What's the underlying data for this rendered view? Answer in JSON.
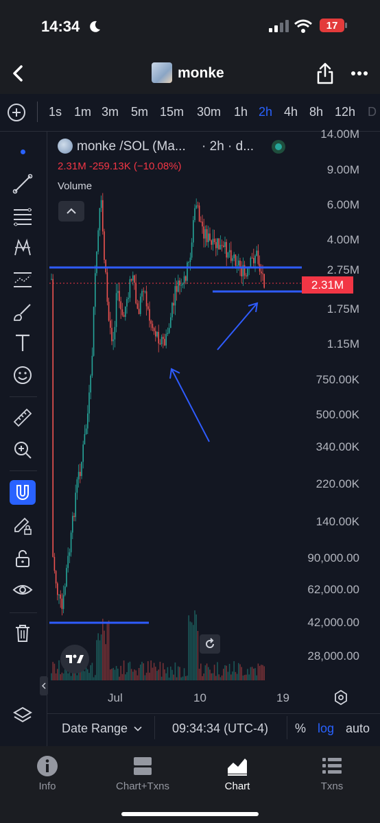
{
  "status_bar": {
    "time": "14:34",
    "battery": "17"
  },
  "nav": {
    "title": "monke"
  },
  "timeframes": [
    {
      "label": "1s"
    },
    {
      "label": "1m"
    },
    {
      "label": "3m"
    },
    {
      "label": "5m"
    },
    {
      "label": "15m"
    },
    {
      "label": "30m"
    },
    {
      "label": "1h"
    },
    {
      "label": "2h",
      "active": true
    },
    {
      "label": "4h"
    },
    {
      "label": "8h"
    },
    {
      "label": "12h"
    },
    {
      "label": "D"
    }
  ],
  "legend": {
    "title": "monke /SOL (Ma...",
    "interval": "· 2h · d...",
    "stats": "2.31M  -259.13K (−10.08%)",
    "volume": "Volume"
  },
  "price_axis": [
    "14.00M",
    "9.00M",
    "6.00M",
    "4.00M",
    "2.75M",
    "1.75M",
    "1.15M",
    "750.00K",
    "500.00K",
    "340.00K",
    "220.00K",
    "140.00K",
    "90,000.00",
    "62,000.00",
    "42,000.00",
    "28,000.00"
  ],
  "current_price": "2.31M",
  "time_axis": [
    "Jul",
    "10",
    "19"
  ],
  "bottom_bar": {
    "date_range": "Date Range",
    "time": "09:34:34 (UTC-4)",
    "percent": "%",
    "log": "log",
    "auto": "auto"
  },
  "tabs": [
    {
      "label": "Info"
    },
    {
      "label": "Chart+Txns"
    },
    {
      "label": "Chart",
      "active": true
    },
    {
      "label": "Txns"
    }
  ],
  "colors": {
    "up": "#26a69a",
    "down": "#ef5350",
    "accent": "#2962ff",
    "drawing": "#2f5cff"
  }
}
